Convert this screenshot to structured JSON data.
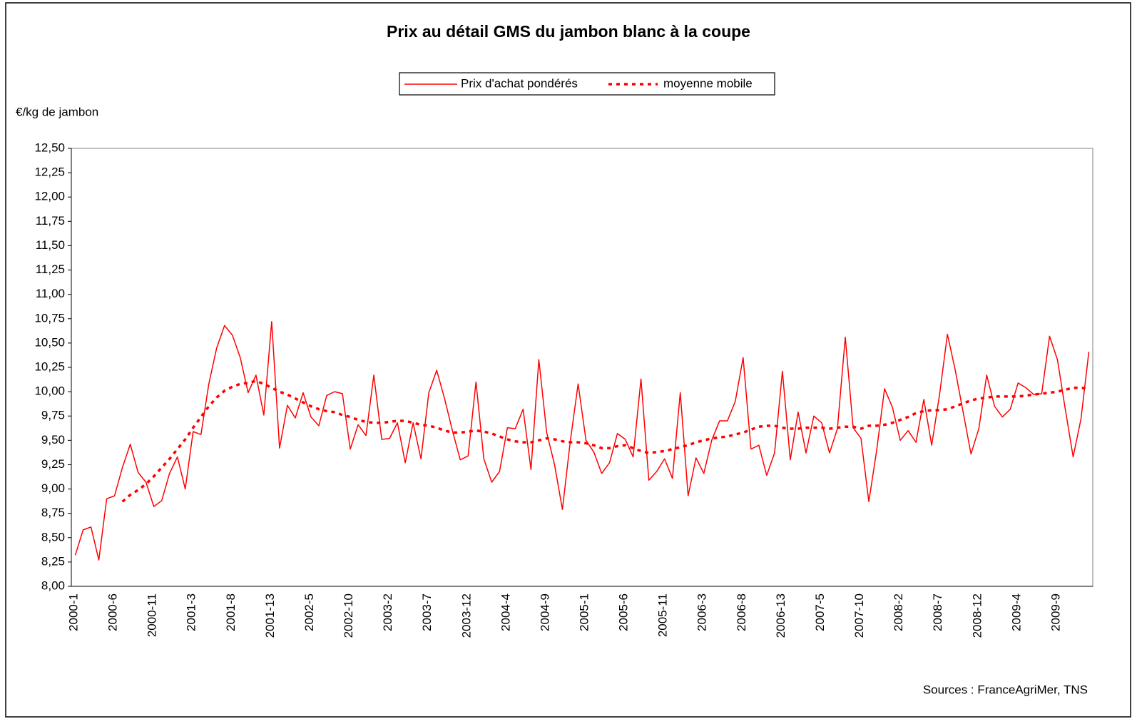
{
  "chart_data": {
    "type": "line",
    "title": "Prix au détail GMS du jambon blanc à la coupe",
    "y_label": "€/kg de jambon",
    "source": "Sources : FranceAgriMer, TNS",
    "legend": "top",
    "grid": false,
    "ylim": [
      8,
      12.5
    ],
    "yticks": [
      {
        "value": 8,
        "label": "8,00"
      },
      {
        "value": 8.25,
        "label": "8,25"
      },
      {
        "value": 8.5,
        "label": "8,50"
      },
      {
        "value": 8.75,
        "label": "8,75"
      },
      {
        "value": 9,
        "label": "9,00"
      },
      {
        "value": 9.25,
        "label": "9,25"
      },
      {
        "value": 9.5,
        "label": "9,50"
      },
      {
        "value": 9.75,
        "label": "9,75"
      },
      {
        "value": 10,
        "label": "10,00"
      },
      {
        "value": 10.25,
        "label": "10,25"
      },
      {
        "value": 10.5,
        "label": "10,50"
      },
      {
        "value": 10.75,
        "label": "10,75"
      },
      {
        "value": 11,
        "label": "11,00"
      },
      {
        "value": 11.25,
        "label": "11,25"
      },
      {
        "value": 11.5,
        "label": "11,50"
      },
      {
        "value": 11.75,
        "label": "11,75"
      },
      {
        "value": 12,
        "label": "12,00"
      },
      {
        "value": 12.25,
        "label": "12,25"
      },
      {
        "value": 12.5,
        "label": "12,50"
      }
    ],
    "categories": [
      "2000-1",
      null,
      null,
      null,
      null,
      "2000-6",
      null,
      null,
      null,
      null,
      "2000-11",
      null,
      null,
      null,
      null,
      "2001-3",
      null,
      null,
      null,
      null,
      "2001-8",
      null,
      null,
      null,
      null,
      "2001-13",
      null,
      null,
      null,
      null,
      "2002-5",
      null,
      null,
      null,
      null,
      "2002-10",
      null,
      null,
      null,
      null,
      "2003-2",
      null,
      null,
      null,
      null,
      "2003-7",
      null,
      null,
      null,
      null,
      "2003-12",
      null,
      null,
      null,
      null,
      "2004-4",
      null,
      null,
      null,
      null,
      "2004-9",
      null,
      null,
      null,
      null,
      "2005-1",
      null,
      null,
      null,
      null,
      "2005-6",
      null,
      null,
      null,
      null,
      "2005-11",
      null,
      null,
      null,
      null,
      "2006-3",
      null,
      null,
      null,
      null,
      "2006-8",
      null,
      null,
      null,
      null,
      "2006-13",
      null,
      null,
      null,
      null,
      "2007-5",
      null,
      null,
      null,
      null,
      "2007-10",
      null,
      null,
      null,
      null,
      "2008-2",
      null,
      null,
      null,
      null,
      "2008-7",
      null,
      null,
      null,
      null,
      "2008-12",
      null,
      null,
      null,
      null,
      "2009-4",
      null,
      null,
      null,
      null,
      "2009-9",
      null,
      null,
      null,
      null
    ],
    "series": [
      {
        "name": "Prix d'achat pondérés",
        "color": "#ff0000",
        "style": "solid",
        "values": [
          8.32,
          8.58,
          8.61,
          8.27,
          8.9,
          8.93,
          9.22,
          9.46,
          9.17,
          9.07,
          8.82,
          8.88,
          9.16,
          9.33,
          9.0,
          9.59,
          9.56,
          10.08,
          10.45,
          10.68,
          10.58,
          10.35,
          9.99,
          10.17,
          9.76,
          10.72,
          9.42,
          9.86,
          9.73,
          9.99,
          9.74,
          9.65,
          9.96,
          10.0,
          9.98,
          9.41,
          9.66,
          9.55,
          10.17,
          9.51,
          9.52,
          9.68,
          9.27,
          9.68,
          9.31,
          9.99,
          10.22,
          9.93,
          9.6,
          9.3,
          9.34,
          10.1,
          9.31,
          9.07,
          9.18,
          9.63,
          9.62,
          9.82,
          9.2,
          10.33,
          9.58,
          9.25,
          8.79,
          9.49,
          10.08,
          9.5,
          9.38,
          9.16,
          9.27,
          9.57,
          9.51,
          9.33,
          10.13,
          9.09,
          9.18,
          9.31,
          9.11,
          9.99,
          8.93,
          9.32,
          9.16,
          9.5,
          9.7,
          9.7,
          9.9,
          10.35,
          9.41,
          9.45,
          9.14,
          9.37,
          10.21,
          9.3,
          9.79,
          9.37,
          9.75,
          9.68,
          9.37,
          9.62,
          10.56,
          9.63,
          9.52,
          8.87,
          9.4,
          10.03,
          9.84,
          9.5,
          9.6,
          9.48,
          9.92,
          9.45,
          9.97,
          10.59,
          10.22,
          9.79,
          9.36,
          9.62,
          10.17,
          9.85,
          9.74,
          9.82,
          10.09,
          10.04,
          9.97,
          9.98,
          10.57,
          10.33,
          9.82,
          9.33,
          9.72,
          10.41
        ]
      },
      {
        "name": "moyenne mobile",
        "color": "#ff0000",
        "style": "dashed",
        "values": [
          null,
          null,
          null,
          null,
          null,
          null,
          8.87,
          8.94,
          8.99,
          9.05,
          9.13,
          9.22,
          9.31,
          9.41,
          9.51,
          9.63,
          9.74,
          9.85,
          9.94,
          10.01,
          10.05,
          10.08,
          10.09,
          10.11,
          10.08,
          10.04,
          10.0,
          9.97,
          9.93,
          9.89,
          9.85,
          9.82,
          9.8,
          9.79,
          9.76,
          9.74,
          9.71,
          9.69,
          9.68,
          9.68,
          9.69,
          9.7,
          9.7,
          9.68,
          9.66,
          9.65,
          9.63,
          9.6,
          9.58,
          9.58,
          9.59,
          9.6,
          9.59,
          9.57,
          9.54,
          9.51,
          9.49,
          9.48,
          9.48,
          9.5,
          9.52,
          9.51,
          9.49,
          9.48,
          9.48,
          9.47,
          9.45,
          9.42,
          9.42,
          9.44,
          9.45,
          9.42,
          9.39,
          9.37,
          9.38,
          9.39,
          9.41,
          9.43,
          9.45,
          9.48,
          9.5,
          9.52,
          9.53,
          9.54,
          9.56,
          9.58,
          9.61,
          9.64,
          9.65,
          9.65,
          9.63,
          9.62,
          9.62,
          9.63,
          9.63,
          9.63,
          9.62,
          9.63,
          9.64,
          9.64,
          9.62,
          9.65,
          9.65,
          9.66,
          9.68,
          9.71,
          9.74,
          9.78,
          9.8,
          9.81,
          9.81,
          9.82,
          9.85,
          9.88,
          9.91,
          9.93,
          9.94,
          9.95,
          9.95,
          9.95,
          9.95,
          9.96,
          9.97,
          9.98,
          9.99,
          10.0,
          10.02,
          10.04,
          10.04,
          10.03
        ]
      }
    ]
  }
}
